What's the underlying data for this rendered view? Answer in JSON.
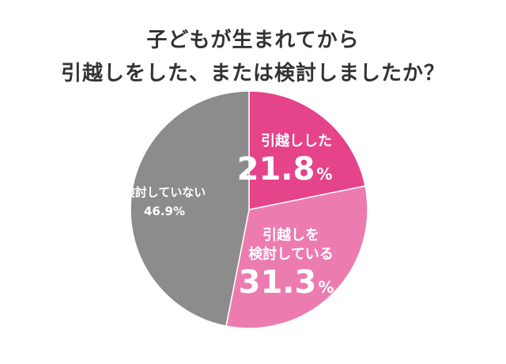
{
  "title_lines": [
    "子どもが生まれてから",
    "引越しをした、または検討しましたか？"
  ],
  "chart_data": {
    "type": "pie",
    "title": "子どもが生まれてから引越しをした、または検討しましたか？",
    "slices": [
      {
        "label": "引越しした",
        "label_lines": [
          "引越しした"
        ],
        "value": 21.8,
        "value_text": "21.8",
        "unit": "%",
        "color": "#e5438a"
      },
      {
        "label": "引越しを検討している",
        "label_lines": [
          "引越しを",
          "検討している"
        ],
        "value": 31.3,
        "value_text": "31.3",
        "unit": "%",
        "color": "#ec7cb0"
      },
      {
        "label": "検討していない",
        "label_lines": [
          "検討していない"
        ],
        "value": 46.9,
        "value_text": "46.9%",
        "unit": "",
        "color": "#8c8c8c"
      }
    ],
    "start_angle_deg": 0,
    "direction": "clockwise"
  }
}
